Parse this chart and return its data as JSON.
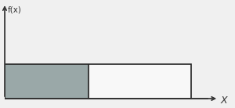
{
  "x_max": 20,
  "x_shade": 9,
  "y_val": 1.0,
  "y_axis_top": 2.8,
  "x_lim": [
    0,
    24
  ],
  "y_lim": [
    -0.15,
    2.8
  ],
  "x_axis_end": 23,
  "shade_color": "#9aA8a8",
  "rect_edge_color": "#222222",
  "rect_face_color": "#f8f8f8",
  "axis_color": "#333333",
  "ylabel": "f(x)",
  "xlabel": "X",
  "fig_width": 3.0,
  "fig_height": 1.38,
  "dpi": 100,
  "background_color": "#f0f0f0",
  "linewidth": 1.2,
  "ylabel_fontsize": 7.5,
  "xlabel_fontsize": 9
}
